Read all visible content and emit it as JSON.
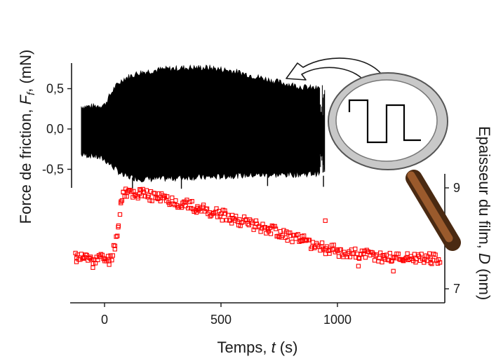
{
  "chart_data": [
    {
      "type": "line",
      "panel": "top",
      "ylabel": "Force de friction, F_f, (mN)",
      "ylabel_parts": {
        "pre": "Force de friction, ",
        "sym": "F",
        "sub": "f",
        "post": ", (mN)"
      },
      "xlabel": "Temps, t (s)",
      "xlabel_parts": {
        "pre": "Temps, ",
        "sym": "t",
        "post": " (s)"
      },
      "xlim": [
        -150,
        1450
      ],
      "ylim": [
        -0.75,
        0.85
      ],
      "xticks": [
        0,
        500,
        1000
      ],
      "xtick_labels": [
        "0",
        "500",
        "1000"
      ],
      "yticks": [
        0.5,
        0.0,
        -0.5
      ],
      "ytick_labels": [
        "0,5",
        "0,0",
        "-0,5"
      ],
      "color": "#000000",
      "series": [
        {
          "x": [
            -100,
            -50,
            0,
            40,
            80,
            150,
            250,
            350,
            450,
            550,
            650,
            750,
            850,
            920,
            940
          ],
          "y_upper": [
            0.28,
            0.28,
            0.3,
            0.5,
            0.62,
            0.7,
            0.74,
            0.76,
            0.76,
            0.72,
            0.65,
            0.58,
            0.52,
            0.5,
            0.58
          ],
          "y_lower": [
            -0.32,
            -0.33,
            -0.38,
            -0.48,
            -0.58,
            -0.62,
            -0.62,
            -0.6,
            -0.6,
            -0.58,
            -0.57,
            -0.57,
            -0.56,
            -0.55,
            -0.58
          ]
        }
      ]
    },
    {
      "type": "scatter",
      "panel": "bottom",
      "ylabel": "Epaisseur du film, D (nm)",
      "ylabel_parts": {
        "pre": "Epaisseur du film, ",
        "sym": "D",
        "post": " (nm)"
      },
      "xlim": [
        -150,
        1450
      ],
      "ylim": [
        6.6,
        9.3
      ],
      "yticks": [
        9,
        7
      ],
      "ytick_labels": [
        "9",
        "7"
      ],
      "marker": "open-square",
      "color": "#ff0000",
      "series": [
        {
          "x": [
            -120,
            -60,
            0,
            20,
            45,
            60,
            70,
            80,
            100,
            150,
            250,
            400,
            550,
            700,
            850,
            950,
            1000,
            1100,
            1200,
            1300,
            1400
          ],
          "y": [
            7.62,
            7.6,
            7.6,
            7.55,
            7.85,
            8.25,
            8.7,
            8.92,
            8.92,
            8.88,
            8.8,
            8.6,
            8.4,
            8.2,
            7.95,
            7.8,
            7.75,
            7.68,
            7.62,
            7.62,
            7.6
          ]
        }
      ]
    }
  ]
}
